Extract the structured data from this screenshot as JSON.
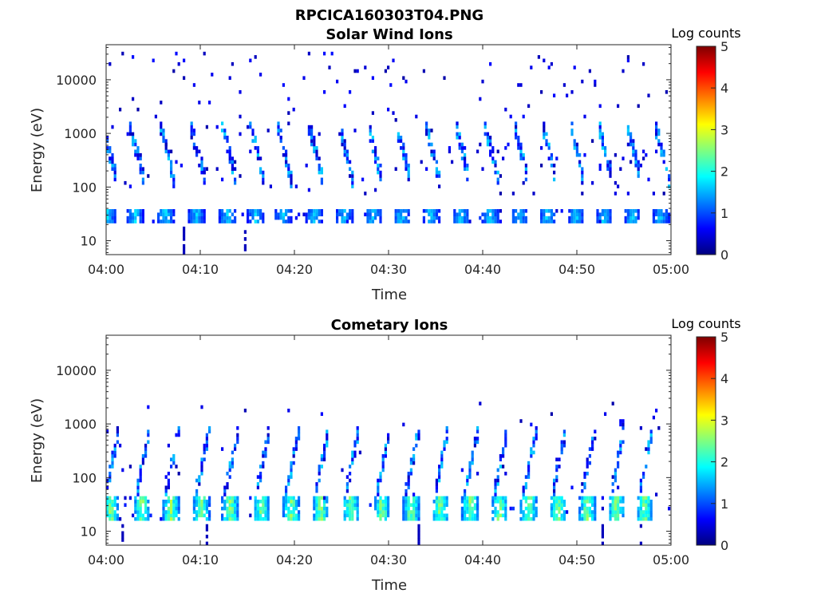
{
  "figure": {
    "title": "RPCICA160303T04.PNG"
  },
  "colormap": {
    "name": "jet",
    "stops": [
      "#00007f",
      "#0000ff",
      "#007fff",
      "#00ffff",
      "#7fff7f",
      "#ffff00",
      "#ff7f00",
      "#ff0000",
      "#7f0000"
    ]
  },
  "chart_data": [
    {
      "type": "heatmap",
      "title": "Solar Wind Ions",
      "xlabel": "Time",
      "ylabel": "Energy (eV)",
      "x_range_minutes": [
        0,
        60
      ],
      "x_ticks": [
        {
          "value": 0,
          "label": "04:00"
        },
        {
          "value": 10,
          "label": "04:10"
        },
        {
          "value": 20,
          "label": "04:20"
        },
        {
          "value": 30,
          "label": "04:30"
        },
        {
          "value": 40,
          "label": "04:40"
        },
        {
          "value": 50,
          "label": "04:50"
        },
        {
          "value": 60,
          "label": "05:00"
        }
      ],
      "y_scale": "log",
      "y_range": [
        5.5,
        45000
      ],
      "y_ticks": [
        {
          "value": 10,
          "label": "10"
        },
        {
          "value": 100,
          "label": "100"
        },
        {
          "value": 1000,
          "label": "1000"
        },
        {
          "value": 10000,
          "label": "10000"
        }
      ],
      "colorbar": {
        "label": "Log counts",
        "range": [
          0,
          5
        ],
        "ticks": [
          {
            "value": 0,
            "label": "0"
          },
          {
            "value": 1,
            "label": "1"
          },
          {
            "value": 2,
            "label": "2"
          },
          {
            "value": 3,
            "label": "3"
          },
          {
            "value": 4,
            "label": "4"
          },
          {
            "value": 5,
            "label": "5"
          }
        ]
      },
      "features": {
        "low_energy_band_eV": [
          22,
          38
        ],
        "low_energy_band_peak_log_counts": 1.9,
        "burst_times_minutes": [
          0.2,
          3.1,
          6.3,
          9.6,
          12.9,
          15.9,
          18.8,
          22.1,
          25.3,
          28.4,
          31.4,
          34.5,
          37.7,
          40.8,
          43.9,
          46.9,
          49.9,
          52.9,
          55.9,
          58.9
        ],
        "burst_high_energy_eV": [
          80,
          1600
        ],
        "background_speckle_eV": [
          80,
          30000
        ]
      }
    },
    {
      "type": "heatmap",
      "title": "Cometary Ions",
      "xlabel": "Time",
      "ylabel": "Energy (eV)",
      "x_range_minutes": [
        0,
        60
      ],
      "x_ticks": [
        {
          "value": 0,
          "label": "04:00"
        },
        {
          "value": 10,
          "label": "04:10"
        },
        {
          "value": 20,
          "label": "04:20"
        },
        {
          "value": 30,
          "label": "04:30"
        },
        {
          "value": 40,
          "label": "04:40"
        },
        {
          "value": 50,
          "label": "04:50"
        },
        {
          "value": 60,
          "label": "05:00"
        }
      ],
      "y_scale": "log",
      "y_range": [
        5.5,
        45000
      ],
      "y_ticks": [
        {
          "value": 10,
          "label": "10"
        },
        {
          "value": 100,
          "label": "100"
        },
        {
          "value": 1000,
          "label": "1000"
        },
        {
          "value": 10000,
          "label": "10000"
        }
      ],
      "colorbar": {
        "label": "Log counts",
        "range": [
          0,
          5
        ],
        "ticks": [
          {
            "value": 0,
            "label": "0"
          },
          {
            "value": 1,
            "label": "1"
          },
          {
            "value": 2,
            "label": "2"
          },
          {
            "value": 3,
            "label": "3"
          },
          {
            "value": 4,
            "label": "4"
          },
          {
            "value": 5,
            "label": "5"
          }
        ]
      },
      "features": {
        "low_energy_band_eV": [
          18,
          40
        ],
        "low_energy_band_peak_log_counts": 2.9,
        "burst_times_minutes": [
          0.5,
          3.8,
          6.9,
          10.1,
          13.2,
          16.5,
          19.7,
          22.8,
          26.0,
          29.3,
          32.4,
          35.5,
          38.7,
          41.8,
          44.9,
          48.0,
          51.1,
          54.2,
          57.2
        ],
        "burst_high_energy_eV": [
          50,
          900
        ],
        "background_speckle_eV": [
          40,
          2500
        ]
      }
    }
  ]
}
